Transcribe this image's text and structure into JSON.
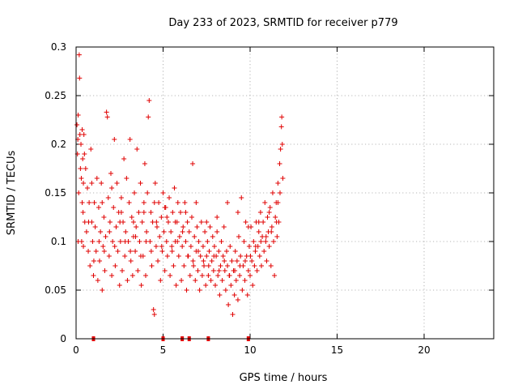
{
  "chart_data": {
    "type": "scatter",
    "title": "Day 233 of 2023, SRMTID for receiver p779",
    "xlabel": "GPS time / hours",
    "ylabel": "SRMTID / TECUs",
    "xlim": [
      0,
      24
    ],
    "ylim": [
      0,
      0.3
    ],
    "xticks": [
      0,
      5,
      10,
      15,
      20
    ],
    "xtick_labels": [
      "0",
      "5",
      "10",
      "15",
      "20"
    ],
    "yticks": [
      0,
      0.05,
      0.1,
      0.15,
      0.2,
      0.25,
      0.3
    ],
    "ytick_labels": [
      "0",
      "0.05",
      "0.1",
      "0.15",
      "0.2",
      "0.25",
      "0.3"
    ],
    "grid": true,
    "marker": "+",
    "series": [
      {
        "name": "SRMTID",
        "color": "#e00000",
        "points": [
          [
            0.05,
            0.22
          ],
          [
            0.08,
            0.19
          ],
          [
            0.1,
            0.205
          ],
          [
            0.12,
            0.23
          ],
          [
            0.15,
            0.15
          ],
          [
            0.18,
            0.292
          ],
          [
            0.2,
            0.268
          ],
          [
            0.22,
            0.21
          ],
          [
            0.25,
            0.175
          ],
          [
            0.28,
            0.2
          ],
          [
            0.3,
            0.165
          ],
          [
            0.32,
            0.1
          ],
          [
            0.35,
            0.215
          ],
          [
            0.38,
            0.185
          ],
          [
            0.4,
            0.13
          ],
          [
            0.42,
            0.16
          ],
          [
            0.45,
            0.21
          ],
          [
            0.48,
            0.19
          ],
          [
            0.5,
            0.12
          ],
          [
            0.55,
            0.175
          ],
          [
            0.6,
            0.11
          ],
          [
            0.65,
            0.155
          ],
          [
            0.7,
            0.09
          ],
          [
            0.75,
            0.14
          ],
          [
            0.8,
            0.075
          ],
          [
            0.85,
            0.195
          ],
          [
            0.9,
            0.12
          ],
          [
            0.95,
            0.1
          ],
          [
            1.0,
            0.065
          ],
          [
            1.05,
            0.14
          ],
          [
            1.1,
            0.115
          ],
          [
            1.15,
            0.09
          ],
          [
            1.2,
            0.165
          ],
          [
            1.25,
            0.06
          ],
          [
            1.3,
            0.135
          ],
          [
            1.35,
            0.08
          ],
          [
            1.4,
            0.11
          ],
          [
            1.45,
            0.16
          ],
          [
            1.5,
            0.05
          ],
          [
            1.55,
            0.095
          ],
          [
            1.6,
            0.125
          ],
          [
            1.65,
            0.07
          ],
          [
            1.7,
            0.105
          ],
          [
            1.75,
            0.233
          ],
          [
            1.8,
            0.228
          ],
          [
            1.85,
            0.145
          ],
          [
            1.9,
            0.085
          ],
          [
            1.95,
            0.12
          ],
          [
            2.0,
            0.17
          ],
          [
            2.05,
            0.065
          ],
          [
            2.1,
            0.1
          ],
          [
            2.15,
            0.135
          ],
          [
            2.2,
            0.205
          ],
          [
            2.25,
            0.075
          ],
          [
            2.3,
            0.115
          ],
          [
            2.35,
            0.16
          ],
          [
            2.4,
            0.09
          ],
          [
            2.45,
            0.13
          ],
          [
            2.5,
            0.055
          ],
          [
            2.55,
            0.1
          ],
          [
            2.6,
            0.145
          ],
          [
            2.65,
            0.07
          ],
          [
            2.7,
            0.12
          ],
          [
            2.75,
            0.185
          ],
          [
            2.8,
            0.085
          ],
          [
            2.85,
            0.11
          ],
          [
            2.9,
            0.165
          ],
          [
            2.95,
            0.06
          ],
          [
            3.0,
            0.1
          ],
          [
            3.05,
            0.14
          ],
          [
            3.1,
            0.205
          ],
          [
            3.15,
            0.08
          ],
          [
            3.2,
            0.125
          ],
          [
            3.25,
            0.065
          ],
          [
            3.3,
            0.105
          ],
          [
            3.35,
            0.15
          ],
          [
            3.4,
            0.09
          ],
          [
            3.45,
            0.115
          ],
          [
            3.5,
            0.195
          ],
          [
            3.55,
            0.07
          ],
          [
            3.6,
            0.13
          ],
          [
            3.65,
            0.1
          ],
          [
            3.7,
            0.16
          ],
          [
            3.75,
            0.055
          ],
          [
            3.8,
            0.12
          ],
          [
            3.85,
            0.085
          ],
          [
            3.9,
            0.14
          ],
          [
            3.95,
            0.18
          ],
          [
            4.0,
            0.065
          ],
          [
            4.05,
            0.11
          ],
          [
            4.1,
            0.15
          ],
          [
            4.15,
            0.228
          ],
          [
            4.2,
            0.245
          ],
          [
            4.25,
            0.1
          ],
          [
            4.3,
            0.13
          ],
          [
            4.35,
            0.075
          ],
          [
            4.4,
            0.12
          ],
          [
            4.45,
            0.03
          ],
          [
            4.5,
            0.025
          ],
          [
            4.55,
            0.16
          ],
          [
            4.6,
            0.095
          ],
          [
            4.65,
            0.115
          ],
          [
            4.7,
            0.08
          ],
          [
            4.75,
            0.14
          ],
          [
            4.8,
            0.105
          ],
          [
            4.85,
            0.06
          ],
          [
            4.9,
            0.125
          ],
          [
            4.95,
            0.09
          ],
          [
            5.0,
            0.15
          ],
          [
            5.05,
            0.11
          ],
          [
            5.1,
            0.07
          ],
          [
            5.15,
            0.135
          ],
          [
            5.2,
            0.1
          ],
          [
            5.25,
            0.085
          ],
          [
            5.3,
            0.12
          ],
          [
            5.35,
            0.145
          ],
          [
            5.4,
            0.065
          ],
          [
            5.45,
            0.11
          ],
          [
            5.5,
            0.095
          ],
          [
            5.55,
            0.13
          ],
          [
            5.6,
            0.075
          ],
          [
            5.65,
            0.155
          ],
          [
            5.7,
            0.1
          ],
          [
            5.75,
            0.055
          ],
          [
            5.8,
            0.12
          ],
          [
            5.85,
            0.14
          ],
          [
            5.9,
            0.085
          ],
          [
            5.95,
            0.105
          ],
          [
            6.0,
            0.13
          ],
          [
            6.05,
            0.06
          ],
          [
            6.1,
            0.095
          ],
          [
            6.15,
            0.115
          ],
          [
            6.2,
            0.075
          ],
          [
            6.25,
            0.14
          ],
          [
            6.3,
            0.1
          ],
          [
            6.35,
            0.05
          ],
          [
            6.4,
            0.12
          ],
          [
            6.45,
            0.085
          ],
          [
            6.5,
            0.11
          ],
          [
            6.55,
            0.065
          ],
          [
            6.6,
            0.095
          ],
          [
            6.65,
            0.125
          ],
          [
            6.7,
            0.18
          ],
          [
            6.75,
            0.075
          ],
          [
            6.8,
            0.105
          ],
          [
            6.85,
            0.06
          ],
          [
            6.9,
            0.09
          ],
          [
            6.95,
            0.115
          ],
          [
            7.0,
            0.07
          ],
          [
            7.05,
            0.1
          ],
          [
            7.1,
            0.05
          ],
          [
            7.15,
            0.085
          ],
          [
            7.2,
            0.12
          ],
          [
            7.25,
            0.065
          ],
          [
            7.3,
            0.095
          ],
          [
            7.35,
            0.075
          ],
          [
            7.4,
            0.11
          ],
          [
            7.45,
            0.055
          ],
          [
            7.5,
            0.085
          ],
          [
            7.55,
            0.1
          ],
          [
            7.6,
            0.065
          ],
          [
            7.65,
            0.09
          ],
          [
            7.7,
            0.115
          ],
          [
            7.75,
            0.06
          ],
          [
            7.8,
            0.08
          ],
          [
            7.85,
            0.105
          ],
          [
            7.9,
            0.07
          ],
          [
            7.95,
            0.095
          ],
          [
            8.0,
            0.055
          ],
          [
            8.05,
            0.085
          ],
          [
            8.1,
            0.11
          ],
          [
            8.15,
            0.065
          ],
          [
            8.2,
            0.09
          ],
          [
            8.25,
            0.045
          ],
          [
            8.3,
            0.075
          ],
          [
            8.35,
            0.1
          ],
          [
            8.4,
            0.06
          ],
          [
            8.45,
            0.085
          ],
          [
            8.5,
            0.115
          ],
          [
            8.55,
            0.07
          ],
          [
            8.6,
            0.05
          ],
          [
            8.65,
            0.09
          ],
          [
            8.7,
            0.075
          ],
          [
            8.75,
            0.035
          ],
          [
            8.8,
            0.065
          ],
          [
            8.85,
            0.095
          ],
          [
            8.9,
            0.055
          ],
          [
            8.95,
            0.08
          ],
          [
            9.0,
            0.025
          ],
          [
            9.05,
            0.07
          ],
          [
            9.1,
            0.045
          ],
          [
            9.15,
            0.09
          ],
          [
            9.2,
            0.06
          ],
          [
            9.25,
            0.08
          ],
          [
            9.3,
            0.04
          ],
          [
            9.35,
            0.105
          ],
          [
            9.4,
            0.065
          ],
          [
            9.45,
            0.085
          ],
          [
            9.5,
            0.145
          ],
          [
            9.55,
            0.05
          ],
          [
            9.6,
            0.075
          ],
          [
            9.65,
            0.1
          ],
          [
            9.7,
            0.06
          ],
          [
            9.75,
            0.12
          ],
          [
            9.8,
            0.085
          ],
          [
            9.85,
            0.045
          ],
          [
            9.9,
            0.07
          ],
          [
            9.95,
            0.095
          ],
          [
            10.0,
            0.065
          ],
          [
            10.05,
            0.115
          ],
          [
            10.1,
            0.08
          ],
          [
            10.15,
            0.055
          ],
          [
            10.2,
            0.1
          ],
          [
            10.25,
            0.075
          ],
          [
            10.3,
            0.09
          ],
          [
            10.35,
            0.12
          ],
          [
            10.4,
            0.07
          ],
          [
            10.45,
            0.095
          ],
          [
            10.5,
            0.11
          ],
          [
            10.55,
            0.085
          ],
          [
            10.6,
            0.13
          ],
          [
            10.65,
            0.075
          ],
          [
            10.7,
            0.105
          ],
          [
            10.75,
            0.12
          ],
          [
            10.8,
            0.09
          ],
          [
            10.85,
            0.14
          ],
          [
            10.9,
            0.1
          ],
          [
            10.95,
            0.08
          ],
          [
            11.0,
            0.125
          ],
          [
            11.05,
            0.11
          ],
          [
            11.1,
            0.095
          ],
          [
            11.15,
            0.135
          ],
          [
            11.2,
            0.075
          ],
          [
            11.25,
            0.115
          ],
          [
            11.3,
            0.15
          ],
          [
            11.35,
            0.1
          ],
          [
            11.4,
            0.065
          ],
          [
            11.45,
            0.125
          ],
          [
            11.5,
            0.14
          ],
          [
            11.55,
            0.105
          ],
          [
            11.6,
            0.16
          ],
          [
            11.65,
            0.12
          ],
          [
            11.7,
            0.18
          ],
          [
            11.75,
            0.195
          ],
          [
            11.8,
            0.218
          ],
          [
            11.82,
            0.228
          ],
          [
            11.85,
            0.2
          ],
          [
            11.88,
            0.165
          ],
          [
            0.12,
            0.1
          ],
          [
            0.42,
            0.095
          ],
          [
            0.72,
            0.12
          ],
          [
            1.02,
            0.08
          ],
          [
            1.32,
            0.1
          ],
          [
            1.62,
            0.09
          ],
          [
            1.92,
            0.11
          ],
          [
            2.22,
            0.095
          ],
          [
            2.52,
            0.12
          ],
          [
            2.82,
            0.1
          ],
          [
            3.12,
            0.09
          ],
          [
            3.42,
            0.105
          ],
          [
            3.72,
            0.085
          ],
          [
            4.02,
            0.1
          ],
          [
            4.32,
            0.09
          ],
          [
            4.62,
            0.12
          ],
          [
            4.92,
            0.095
          ],
          [
            5.22,
            0.125
          ],
          [
            5.52,
            0.09
          ],
          [
            5.82,
            0.1
          ],
          [
            6.12,
            0.11
          ],
          [
            6.42,
            0.085
          ],
          [
            6.72,
            0.08
          ],
          [
            7.02,
            0.09
          ],
          [
            7.32,
            0.08
          ],
          [
            7.62,
            0.075
          ],
          [
            7.92,
            0.085
          ],
          [
            8.22,
            0.07
          ],
          [
            8.52,
            0.08
          ],
          [
            8.82,
            0.065
          ],
          [
            9.12,
            0.07
          ],
          [
            9.42,
            0.075
          ],
          [
            9.72,
            0.08
          ],
          [
            10.02,
            0.085
          ],
          [
            10.32,
            0.095
          ],
          [
            10.62,
            0.1
          ],
          [
            10.92,
            0.105
          ],
          [
            11.22,
            0.11
          ],
          [
            11.52,
            0.12
          ],
          [
            11.72,
            0.15
          ],
          [
            0.35,
            0.14
          ],
          [
            0.9,
            0.16
          ],
          [
            1.5,
            0.14
          ],
          [
            2.05,
            0.155
          ],
          [
            2.6,
            0.13
          ],
          [
            3.3,
            0.12
          ],
          [
            3.9,
            0.13
          ],
          [
            4.5,
            0.14
          ],
          [
            5.1,
            0.135
          ],
          [
            5.7,
            0.12
          ],
          [
            6.3,
            0.13
          ],
          [
            6.9,
            0.14
          ],
          [
            7.5,
            0.12
          ],
          [
            8.1,
            0.125
          ],
          [
            8.7,
            0.14
          ],
          [
            9.3,
            0.13
          ],
          [
            9.9,
            0.115
          ],
          [
            10.5,
            0.12
          ],
          [
            11.1,
            0.13
          ],
          [
            11.6,
            0.14
          ]
        ]
      }
    ],
    "data_gaps": [
      1.0,
      5.0,
      6.1,
      6.5,
      7.6,
      9.9
    ]
  }
}
